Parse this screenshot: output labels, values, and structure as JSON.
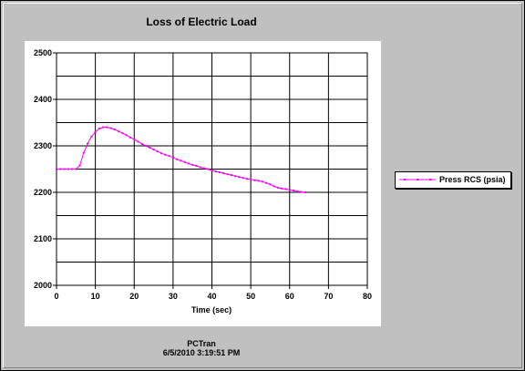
{
  "chart_data": {
    "type": "line",
    "title": "Loss of Electric Load",
    "xlabel": "Time (sec)",
    "ylabel": "",
    "xlim": [
      0,
      80
    ],
    "ylim": [
      2000,
      2500
    ],
    "xticks": [
      "0",
      "10",
      "20",
      "30",
      "40",
      "50",
      "60",
      "70",
      "80"
    ],
    "yticks": [
      "2500",
      "2400",
      "2300",
      "2200",
      "2100",
      "2000"
    ],
    "grid": true,
    "legend_position": "right",
    "series": [
      {
        "name": "Press RCS (psia)",
        "color": "#ff00ff",
        "x": [
          0,
          1,
          2,
          3,
          4,
          5,
          6,
          7,
          8,
          9,
          10,
          11,
          12,
          13,
          14,
          15,
          16,
          17,
          18,
          19,
          20,
          21,
          22,
          23,
          24,
          25,
          26,
          27,
          28,
          29,
          30,
          31,
          32,
          33,
          34,
          35,
          36,
          37,
          38,
          39,
          40,
          41,
          42,
          43,
          44,
          45,
          46,
          47,
          48,
          49,
          50,
          51,
          52,
          53,
          54,
          55,
          56,
          57,
          58,
          59,
          60,
          61,
          62,
          63,
          64
        ],
        "y": [
          2250,
          2250,
          2250,
          2250,
          2250,
          2250,
          2258,
          2285,
          2305,
          2320,
          2330,
          2337,
          2340,
          2340,
          2338,
          2335,
          2331,
          2327,
          2323,
          2318,
          2314,
          2309,
          2304,
          2300,
          2296,
          2292,
          2288,
          2284,
          2281,
          2278,
          2275,
          2271,
          2268,
          2265,
          2262,
          2259,
          2257,
          2254,
          2252,
          2250,
          2247,
          2245,
          2243,
          2241,
          2239,
          2237,
          2235,
          2233,
          2231,
          2229,
          2228,
          2226,
          2225,
          2223,
          2220,
          2217,
          2213,
          2210,
          2208,
          2207,
          2205,
          2204,
          2202,
          2201,
          2200
        ]
      }
    ]
  },
  "footer": {
    "source": "PCTran",
    "timestamp": "6/5/2010 3:19:51 PM"
  }
}
